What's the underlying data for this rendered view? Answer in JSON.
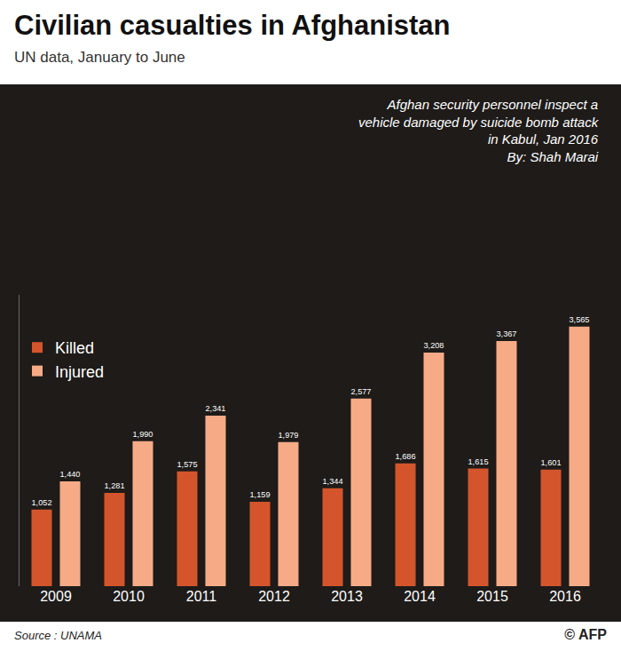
{
  "chart_data": {
    "type": "bar",
    "title": "Civilian casualties in Afghanistan",
    "subtitle": "UN data, January to June",
    "photo_caption": "Afghan security personnel inspect a vehicle damaged by suicide bomb attack in Kabul, Jan 2016",
    "photo_credit": "By: Shah Marai",
    "source": "Source : UNAMA",
    "copyright": "© AFP",
    "categories": [
      "2009",
      "2010",
      "2011",
      "2012",
      "2013",
      "2014",
      "2015",
      "2016"
    ],
    "series": [
      {
        "name": "Killed",
        "color": "#d4552c",
        "values": [
          1052,
          1281,
          1575,
          1159,
          1344,
          1686,
          1615,
          1601
        ],
        "value_labels": [
          "1,052",
          "1,281",
          "1,575",
          "1,159",
          "1,344",
          "1,686",
          "1,615",
          "1,601"
        ]
      },
      {
        "name": "Injured",
        "color": "#f6ab86",
        "values": [
          1440,
          1990,
          2341,
          1979,
          2577,
          3208,
          3367,
          3565
        ],
        "value_labels": [
          "1,440",
          "1,990",
          "2,341",
          "1,979",
          "2,577",
          "3,208",
          "3,367",
          "3,565"
        ]
      }
    ],
    "ylim": [
      0,
      4000
    ],
    "yticks": [],
    "tick_labels": "x",
    "data_labels": true,
    "grid": false,
    "legend": "upper left"
  }
}
